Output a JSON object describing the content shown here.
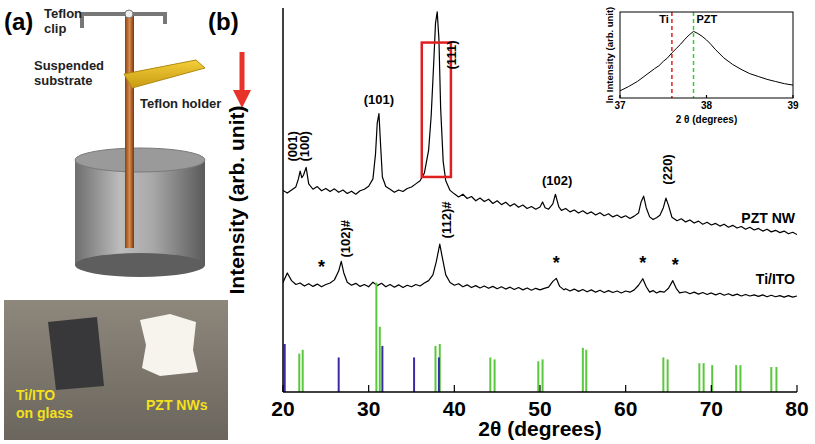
{
  "panels": [
    "(a)",
    "(b)"
  ],
  "diagram": {
    "labels": [
      {
        "lines": [
          "Teflon",
          "clip"
        ]
      },
      {
        "lines": [
          "Suspended",
          "substrate"
        ]
      },
      {
        "lines": [
          "Teflon holder"
        ]
      }
    ],
    "photo_labels": [
      {
        "lines": [
          "Ti/ITO",
          "on glass"
        ]
      },
      {
        "lines": [
          "PZT NWs"
        ]
      }
    ]
  },
  "chart_data": [
    {
      "type": "line",
      "x_label": "2θ (degrees)",
      "y_label": "Intensity (arb. unit)",
      "xlim": [
        20,
        80
      ],
      "xticks": [
        20,
        30,
        40,
        50,
        60,
        70,
        80
      ],
      "ylim": [
        0,
        100
      ],
      "tick_labels": "x",
      "series": [
        {
          "name": "PZT NW",
          "color": "#000000",
          "type": "line",
          "x": [
            20,
            20.5,
            21,
            21.5,
            21.8,
            22.0,
            22.2,
            22.4,
            22.7,
            23.0,
            23.5,
            24,
            24.5,
            25,
            25.5,
            26,
            26.5,
            27,
            27.5,
            28,
            28.5,
            29,
            29.5,
            30,
            30.5,
            30.8,
            31.0,
            31.2,
            31.4,
            31.6,
            32,
            32.5,
            33,
            33.5,
            34,
            34.5,
            35,
            35.5,
            36,
            36.5,
            37,
            37.3,
            37.6,
            37.8,
            38.0,
            38.2,
            38.4,
            38.7,
            39,
            39.5,
            40,
            40.5,
            41,
            41.5,
            42,
            42.5,
            43,
            43.5,
            44,
            44.5,
            45,
            45.5,
            46,
            46.5,
            47,
            47.5,
            48,
            48.5,
            49,
            49.5,
            50,
            50.3,
            50.6,
            51,
            51.5,
            51.8,
            52.2,
            52.5,
            53,
            53.5,
            54,
            54.5,
            55,
            55.5,
            56,
            56.5,
            57,
            57.5,
            58,
            58.5,
            59,
            59.5,
            60,
            60.5,
            61,
            61.5,
            61.8,
            62.1,
            62.4,
            62.8,
            63.2,
            63.6,
            64,
            64.4,
            64.7,
            65.0,
            65.4,
            66,
            66.5,
            67,
            67.5,
            68,
            68.5,
            69,
            69.5,
            70,
            70.5,
            71,
            71.5,
            72,
            72.5,
            73,
            73.5,
            74,
            74.5,
            75,
            75.5,
            76,
            76.5,
            77,
            77.5,
            78,
            78.5,
            79,
            79.5,
            80
          ],
          "values": [
            52.5,
            51.8,
            52.6,
            53.4,
            55.5,
            57.5,
            55.8,
            56.5,
            58.5,
            54.2,
            52.8,
            53.5,
            52.4,
            53.0,
            52.2,
            52.9,
            52.0,
            52.6,
            51.7,
            52.3,
            51.5,
            52.4,
            52.8,
            53.6,
            55.5,
            62,
            70,
            72.5,
            64,
            56,
            53.5,
            52.8,
            52.0,
            52.6,
            52.2,
            53.0,
            53.4,
            54.2,
            55.0,
            57,
            63,
            72,
            86,
            96,
            99,
            92,
            74,
            60,
            55,
            52.5,
            51.6,
            50.8,
            51.5,
            50.4,
            50.9,
            49.8,
            50.5,
            49.6,
            50.2,
            49.1,
            49.8,
            48.8,
            49.4,
            48.4,
            49.0,
            48.1,
            48.7,
            47.8,
            48.3,
            47.6,
            48.2,
            49.5,
            48.0,
            47.6,
            49.0,
            51.5,
            48.2,
            47.3,
            47.8,
            46.9,
            47.4,
            46.6,
            47.2,
            46.4,
            46.9,
            46.1,
            46.7,
            45.9,
            46.4,
            45.6,
            46.1,
            45.4,
            45.9,
            45.2,
            45.8,
            46.6,
            49.5,
            51,
            48,
            45.6,
            44.9,
            45.4,
            46.0,
            48,
            50.5,
            48.6,
            45.5,
            44.6,
            45.1,
            44.3,
            44.8,
            44.0,
            44.5,
            43.7,
            44.2,
            43.5,
            43.9,
            43.2,
            43.7,
            42.9,
            43.4,
            42.7,
            43.1,
            42.4,
            42.9,
            42.2,
            42.6,
            41.9,
            42.4,
            41.7,
            42.1,
            41.5,
            41.9,
            41.2,
            41.6,
            41.0
          ]
        },
        {
          "name": "Ti/ITO",
          "color": "#000000",
          "type": "line",
          "x": [
            20,
            20.5,
            21,
            21.5,
            22,
            22.5,
            23,
            23.5,
            24,
            24.5,
            25,
            25.5,
            26,
            26.5,
            26.8,
            27.1,
            27.5,
            28,
            28.5,
            29,
            29.5,
            30,
            30.5,
            31,
            31.5,
            32,
            32.5,
            33,
            33.5,
            34,
            34.5,
            35,
            35.5,
            36,
            36.5,
            37,
            37.5,
            37.9,
            38.3,
            38.6,
            39,
            39.5,
            40,
            40.5,
            41,
            41.5,
            42,
            42.5,
            43,
            43.5,
            44,
            44.5,
            45,
            45.5,
            46,
            46.5,
            47,
            47.5,
            48,
            48.5,
            49,
            49.5,
            50,
            50.5,
            51,
            51.5,
            51.9,
            52.3,
            52.8,
            53,
            53.5,
            54,
            54.5,
            55,
            55.5,
            56,
            56.5,
            57,
            57.5,
            58,
            58.5,
            59,
            59.5,
            60,
            60.5,
            61,
            61.5,
            62,
            62.4,
            62.8,
            63.2,
            63.6,
            64,
            64.5,
            65,
            65.5,
            65.9,
            66.3,
            67,
            67.5,
            68,
            68.5,
            69,
            69.5,
            70,
            70.5,
            71,
            71.5,
            72,
            72.5,
            73,
            73.5,
            74,
            74.5,
            75,
            75.5,
            76,
            76.5,
            77,
            77.5,
            78,
            78.5,
            79,
            79.5,
            80
          ],
          "values": [
            28.5,
            31,
            29,
            28,
            28.4,
            27.6,
            28.2,
            27.5,
            28.1,
            27.4,
            28.0,
            28.4,
            29.2,
            31.5,
            34,
            31,
            28.6,
            27.8,
            28.3,
            27.5,
            28.0,
            27.4,
            28.6,
            27.7,
            28.3,
            27.4,
            28.0,
            27.3,
            27.9,
            27.2,
            27.8,
            27.4,
            28.0,
            27.6,
            28.4,
            29.0,
            30.5,
            34,
            38.5,
            35,
            30.5,
            28.5,
            27.8,
            28.2,
            27.4,
            27.9,
            27.2,
            27.7,
            27.1,
            27.6,
            27.0,
            27.5,
            26.9,
            27.4,
            26.8,
            27.3,
            26.7,
            27.2,
            26.6,
            27.1,
            26.5,
            27.0,
            26.6,
            27.0,
            27.3,
            28.8,
            29.6,
            27.5,
            26.6,
            26.9,
            26.3,
            26.8,
            26.2,
            26.7,
            26.1,
            26.6,
            26.0,
            26.5,
            25.9,
            26.4,
            25.9,
            26.3,
            25.8,
            26.3,
            26.0,
            26.6,
            27.8,
            29.5,
            27.4,
            26.0,
            26.4,
            25.8,
            26.2,
            26.0,
            27.0,
            29.0,
            27.0,
            25.8,
            26.1,
            25.6,
            26.0,
            25.5,
            25.9,
            25.4,
            25.8,
            25.3,
            25.7,
            25.2,
            25.6,
            25.1,
            25.5,
            25.0,
            25.4,
            25.0,
            25.3,
            24.9,
            25.3,
            24.8,
            25.2,
            24.8,
            25.1,
            24.7,
            25.1,
            24.7,
            25.0
          ]
        },
        {
          "color": "#5ac83c",
          "type": "stem",
          "x": [
            21.9,
            22.3,
            30.9,
            31.3,
            37.8,
            38.3,
            44.2,
            44.7,
            49.8,
            50.3,
            55.0,
            55.4,
            64.4,
            64.9,
            68.6,
            69.1,
            70.1,
            72.9,
            73.4,
            77.0,
            77.6
          ],
          "values": [
            10,
            11,
            28.5,
            17,
            12,
            12.5,
            9,
            8.5,
            8,
            8.5,
            11.5,
            11,
            9,
            8.5,
            7.5,
            7.5,
            7,
            7,
            7,
            6.5,
            6.5
          ]
        },
        {
          "color": "#3a2aa8",
          "type": "stem",
          "x": [
            20.2,
            26.5,
            31.6,
            35.3,
            38.2
          ],
          "values": [
            12.5,
            9,
            12,
            9,
            9
          ]
        }
      ],
      "annotations": [
        {
          "text": "(001)",
          "x": 21.6,
          "y": 60,
          "orientation": "vertical"
        },
        {
          "text": "(100)",
          "x": 23.0,
          "y": 60,
          "orientation": "vertical"
        },
        {
          "text": "(101)",
          "x": 31.2,
          "y": 75
        },
        {
          "text": "(111)",
          "x": 40.2,
          "y": 84,
          "orientation": "vertical"
        },
        {
          "text": "(102)",
          "x": 52,
          "y": 54
        },
        {
          "text": "(220)",
          "x": 65.4,
          "y": 54,
          "orientation": "vertical"
        },
        {
          "text": "(102)#",
          "x": 27.8,
          "y": 35,
          "orientation": "vertical"
        },
        {
          "text": "(112)#",
          "x": 39.6,
          "y": 40,
          "orientation": "vertical"
        },
        {
          "text": "*",
          "x": 24.5,
          "y": 31
        },
        {
          "text": "*",
          "x": 51.9,
          "y": 32
        },
        {
          "text": "*",
          "x": 62,
          "y": 32
        },
        {
          "text": "*",
          "x": 65.8,
          "y": 31.5
        }
      ],
      "highlight": {
        "x": [
          36.2,
          39.6
        ],
        "y": [
          56,
          91
        ],
        "color": "#e02020"
      }
    },
    {
      "type": "line",
      "x_label": "2 θ (degrees)",
      "y_label": "ln Intensity (arb. unit)",
      "xlim": [
        37,
        39
      ],
      "xticks": [
        37,
        38,
        39
      ],
      "ylim": [
        0,
        12
      ],
      "tick_labels": "x",
      "series": [
        {
          "color": "#000000",
          "type": "line",
          "x": [
            37.0,
            37.1,
            37.2,
            37.3,
            37.4,
            37.45,
            37.5,
            37.55,
            37.6,
            37.65,
            37.7,
            37.75,
            37.8,
            37.85,
            37.9,
            37.95,
            38.0,
            38.05,
            38.1,
            38.2,
            38.3,
            38.4,
            38.5,
            38.6,
            38.7,
            38.8,
            38.9,
            39.0
          ],
          "values": [
            1.0,
            1.6,
            2.3,
            3.2,
            4.1,
            4.5,
            5.1,
            5.6,
            6.3,
            6.9,
            7.5,
            8.2,
            8.8,
            9.3,
            9.0,
            8.6,
            8.1,
            7.5,
            6.8,
            5.6,
            4.7,
            4.0,
            3.4,
            3.0,
            2.6,
            2.3,
            2.0,
            1.8
          ]
        }
      ],
      "reference_lines": [
        {
          "x": 37.6,
          "label": "Ti",
          "color": "#e02020",
          "line_style": "dashed"
        },
        {
          "x": 37.85,
          "label": "PZT",
          "color": "#33cc33",
          "line_style": "dashed"
        }
      ]
    }
  ]
}
